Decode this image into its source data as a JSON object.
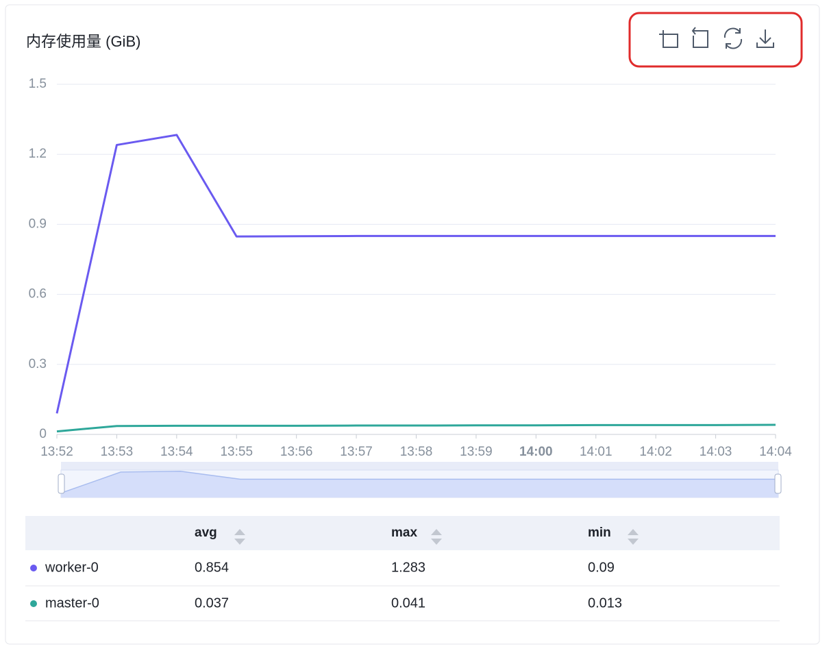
{
  "chart_data": {
    "type": "line",
    "title": "内存使用量 (GiB)",
    "categories": [
      "13:52",
      "13:53",
      "13:54",
      "13:55",
      "13:56",
      "13:57",
      "13:58",
      "13:59",
      "14:00",
      "14:01",
      "14:02",
      "14:03",
      "14:04"
    ],
    "series": [
      {
        "name": "worker-0",
        "color": "#6a5af0",
        "values": [
          0.09,
          1.24,
          1.283,
          0.848,
          0.849,
          0.85,
          0.85,
          0.85,
          0.85,
          0.85,
          0.85,
          0.85,
          0.85
        ]
      },
      {
        "name": "master-0",
        "color": "#2ea79a",
        "values": [
          0.013,
          0.036,
          0.037,
          0.037,
          0.037,
          0.038,
          0.038,
          0.039,
          0.039,
          0.04,
          0.04,
          0.04,
          0.041
        ]
      }
    ],
    "ylim": [
      0,
      1.5
    ],
    "yticks": [
      0,
      0.3,
      0.6,
      0.9,
      1.2,
      1.5
    ],
    "grid": true
  },
  "table": {
    "columns": [
      "avg",
      "max",
      "min"
    ],
    "rows": [
      [
        0.854,
        1.283,
        0.09
      ],
      [
        0.037,
        0.041,
        0.013
      ]
    ]
  }
}
